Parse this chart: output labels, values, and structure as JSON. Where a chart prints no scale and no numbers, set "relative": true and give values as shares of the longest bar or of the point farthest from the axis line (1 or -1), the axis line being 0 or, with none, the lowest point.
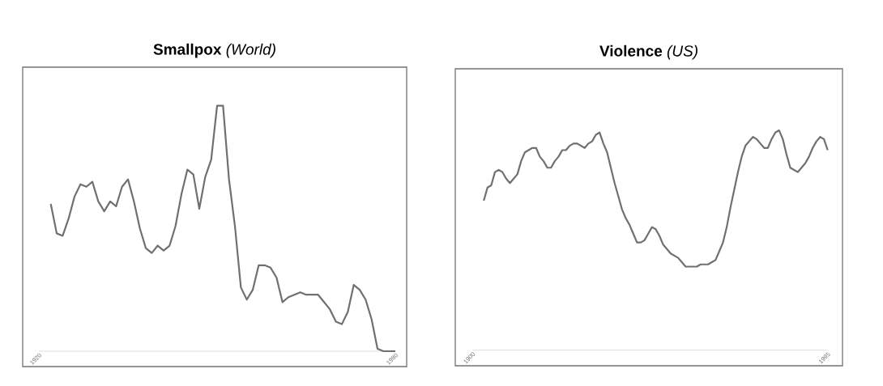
{
  "chart_data": [
    {
      "type": "line",
      "title": "**Smallpox** *(World)*",
      "relative": true,
      "xlim": [
        1920,
        1980
      ],
      "xticks": [
        1920,
        1980
      ],
      "tick_labels": "x",
      "color": "#707070",
      "x": [
        1922,
        1923,
        1924,
        1925,
        1926,
        1927,
        1928,
        1929,
        1930,
        1931,
        1932,
        1933,
        1934,
        1935,
        1936,
        1937,
        1938,
        1939,
        1940,
        1941,
        1942,
        1943,
        1944,
        1945,
        1946,
        1947,
        1948,
        1949,
        1950,
        1951,
        1952,
        1953,
        1954,
        1955,
        1956,
        1957,
        1958,
        1959,
        1960,
        1961,
        1962,
        1963,
        1964,
        1965,
        1966,
        1967,
        1968,
        1969,
        1970,
        1971,
        1972,
        1973,
        1974,
        1975,
        1976,
        1977,
        1978,
        1979,
        1980
      ],
      "values": [
        0.6,
        0.48,
        0.47,
        0.54,
        0.63,
        0.68,
        0.67,
        0.69,
        0.61,
        0.57,
        0.61,
        0.59,
        0.67,
        0.7,
        0.61,
        0.5,
        0.42,
        0.4,
        0.43,
        0.41,
        0.43,
        0.51,
        0.64,
        0.74,
        0.72,
        0.58,
        0.71,
        0.78,
        1.0,
        1.0,
        0.7,
        0.51,
        0.26,
        0.21,
        0.25,
        0.35,
        0.35,
        0.34,
        0.3,
        0.2,
        0.22,
        0.23,
        0.24,
        0.23,
        0.23,
        0.23,
        0.2,
        0.17,
        0.12,
        0.11,
        0.16,
        0.27,
        0.25,
        0.21,
        0.13,
        0.01,
        0.0,
        0.0,
        0.0
      ]
    },
    {
      "type": "line",
      "title": "**Violence** *(US)*",
      "relative": true,
      "xlim": [
        1900,
        1995
      ],
      "xticks": [
        1900,
        1995
      ],
      "tick_labels": "x",
      "color": "#707070",
      "x": [
        1903,
        1904,
        1905,
        1906,
        1907,
        1908,
        1909,
        1910,
        1911,
        1912,
        1913,
        1914,
        1915,
        1916,
        1917,
        1918,
        1919,
        1920,
        1921,
        1922,
        1923,
        1924,
        1925,
        1926,
        1927,
        1928,
        1929,
        1930,
        1931,
        1932,
        1933,
        1934,
        1935,
        1936,
        1937,
        1938,
        1939,
        1940,
        1941,
        1942,
        1943,
        1944,
        1945,
        1946,
        1947,
        1948,
        1949,
        1950,
        1951,
        1952,
        1953,
        1954,
        1955,
        1956,
        1957,
        1958,
        1959,
        1960,
        1961,
        1962,
        1963,
        1964,
        1965,
        1966,
        1967,
        1968,
        1969,
        1970,
        1971,
        1972,
        1973,
        1974,
        1975,
        1976,
        1977,
        1978,
        1979,
        1980,
        1981,
        1982,
        1983,
        1984,
        1985,
        1986,
        1987,
        1988,
        1989,
        1990,
        1991,
        1992,
        1993,
        1994,
        1995
      ],
      "values": [
        0.68,
        0.74,
        0.75,
        0.81,
        0.82,
        0.81,
        0.78,
        0.76,
        0.78,
        0.8,
        0.86,
        0.9,
        0.91,
        0.92,
        0.92,
        0.88,
        0.86,
        0.83,
        0.83,
        0.86,
        0.88,
        0.91,
        0.91,
        0.93,
        0.94,
        0.94,
        0.93,
        0.92,
        0.94,
        0.95,
        0.98,
        0.99,
        0.94,
        0.9,
        0.83,
        0.76,
        0.7,
        0.64,
        0.6,
        0.57,
        0.53,
        0.49,
        0.49,
        0.5,
        0.53,
        0.56,
        0.55,
        0.52,
        0.48,
        0.46,
        0.44,
        0.43,
        0.42,
        0.4,
        0.38,
        0.38,
        0.38,
        0.38,
        0.39,
        0.39,
        0.39,
        0.4,
        0.41,
        0.45,
        0.49,
        0.56,
        0.65,
        0.73,
        0.81,
        0.88,
        0.93,
        0.95,
        0.97,
        0.96,
        0.94,
        0.92,
        0.92,
        0.96,
        0.99,
        1.0,
        0.96,
        0.89,
        0.83,
        0.82,
        0.81,
        0.83,
        0.85,
        0.88,
        0.92,
        0.95,
        0.97,
        0.96,
        0.91
      ]
    }
  ]
}
